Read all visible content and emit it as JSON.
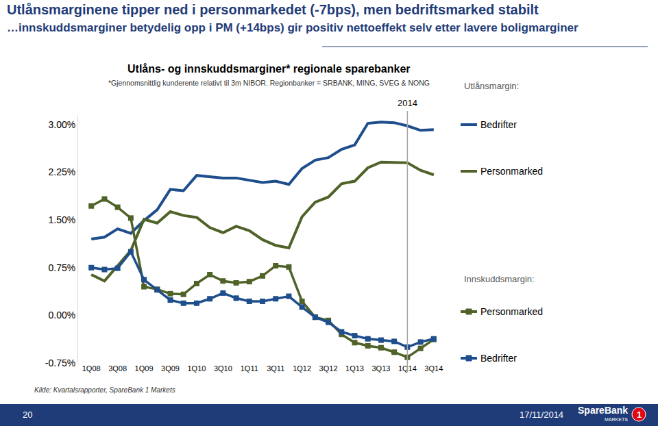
{
  "slide": {
    "headline": [
      "Utlånsmarginene tipper ned i personmarkedet (-7bps), men bedriftsmarked stabilt",
      "…innskuddsmarginer betydelig opp i PM (+14bps) gir positiv nettoeffekt selv etter lavere boligmarginer"
    ],
    "source": "Kilde: Kvartalsrapporter, SpareBank 1 Markets",
    "footer": {
      "page": "20",
      "date": "17/11/2014",
      "logo": [
        "SpareBank",
        "MARKETS",
        "1"
      ]
    }
  },
  "chart_data": {
    "type": "line",
    "title": "Utlåns- og innskuddsmarginer* regionale sparebanker",
    "subtitle": "*Gjennomsnittlig kunderente relativt til 3m NIBOR. Regionbanker = SRBANK, MING, SVEG & NONG",
    "annotations": [
      {
        "x": "1Q14",
        "text": "2014"
      }
    ],
    "categories": [
      "1Q08",
      null,
      "3Q08",
      null,
      "1Q09",
      null,
      "3Q09",
      null,
      "1Q10",
      null,
      "3Q10",
      null,
      "1Q11",
      null,
      "3Q11",
      null,
      "1Q12",
      null,
      "3Q12",
      null,
      "1Q13",
      null,
      "3Q13",
      null,
      "1Q14",
      null,
      "3Q14"
    ],
    "ylim": [
      -0.75,
      3.15
    ],
    "yticks": [
      {
        "value": -0.75,
        "label": "-0.75%"
      },
      {
        "value": 0,
        "label": "0.00%"
      },
      {
        "value": 0.75,
        "label": "0.75%"
      },
      {
        "value": 1.5,
        "label": "1.50%"
      },
      {
        "value": 2.25,
        "label": "2.25%"
      },
      {
        "value": 3,
        "label": "3.00%"
      }
    ],
    "grid": false,
    "series": [
      {
        "group": "Utlånsmargin:",
        "name": "Bedrifter",
        "color": "#1f4e8c",
        "marker": "none",
        "line_style": "solid",
        "values": [
          1.2,
          1.23,
          1.36,
          1.29,
          1.49,
          1.66,
          1.98,
          1.96,
          2.2,
          2.18,
          2.16,
          2.16,
          2.12,
          2.09,
          2.11,
          2.06,
          2.31,
          2.44,
          2.48,
          2.61,
          2.68,
          3.02,
          3.04,
          3.03,
          2.98,
          2.91,
          2.92
        ]
      },
      {
        "group": "Utlånsmargin:",
        "name": "Personmarked",
        "color": "#4f6228",
        "marker": "none",
        "line_style": "solid",
        "values": [
          0.64,
          0.54,
          0.78,
          1.02,
          1.51,
          1.45,
          1.63,
          1.57,
          1.54,
          1.38,
          1.3,
          1.4,
          1.33,
          1.19,
          1.1,
          1.06,
          1.55,
          1.78,
          1.86,
          2.07,
          2.11,
          2.32,
          2.41,
          2.41,
          2.4,
          2.28,
          2.21
        ]
      },
      {
        "group": "Innskuddsmargin:",
        "name": "Personmarked",
        "color": "#4f6228",
        "marker": "square",
        "line_style": "solid",
        "values": [
          1.72,
          1.83,
          1.7,
          1.53,
          0.45,
          0.41,
          0.34,
          0.33,
          0.5,
          0.64,
          0.54,
          0.51,
          0.53,
          0.62,
          0.78,
          0.76,
          0.22,
          -0.03,
          -0.08,
          -0.3,
          -0.43,
          -0.48,
          -0.51,
          -0.58,
          -0.66,
          -0.52,
          -0.38
        ]
      },
      {
        "group": "Innskuddsmargin:",
        "name": "Bedrifter",
        "color": "#1f4e8c",
        "marker": "square",
        "line_style": "solid",
        "values": [
          0.75,
          0.72,
          0.74,
          1.0,
          0.56,
          0.4,
          0.24,
          0.19,
          0.19,
          0.26,
          0.35,
          0.27,
          0.22,
          0.22,
          0.26,
          0.3,
          0.13,
          -0.03,
          -0.11,
          -0.26,
          -0.32,
          -0.37,
          -0.39,
          -0.41,
          -0.5,
          -0.42,
          -0.37
        ]
      }
    ]
  }
}
